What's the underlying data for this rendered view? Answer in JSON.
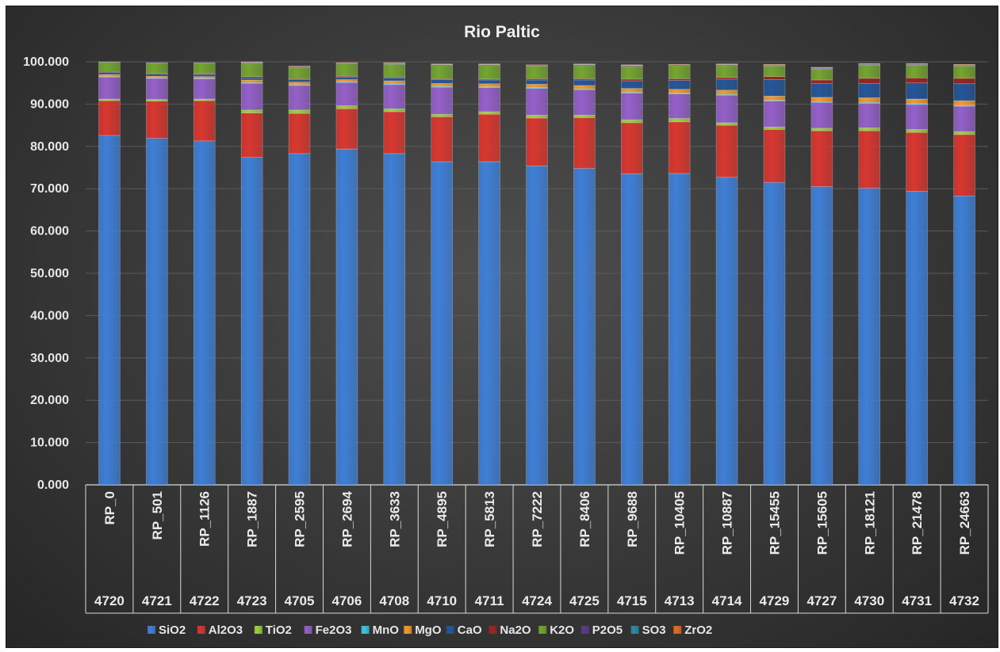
{
  "chart_data": {
    "type": "bar",
    "stacked": true,
    "title": "Rio Paltic",
    "ylim": [
      0,
      100
    ],
    "yticks": [
      "0.000",
      "10.000",
      "20.000",
      "30.000",
      "40.000",
      "50.000",
      "60.000",
      "70.000",
      "80.000",
      "90.000",
      "100.000"
    ],
    "grid": true,
    "legend_position": "bottom",
    "categories": [
      "RP_0",
      "RP_501",
      "RP_1126",
      "RP_1887",
      "RP_2595",
      "RP_2694",
      "RP_3633",
      "RP_4895",
      "RP_5813",
      "RP_7222",
      "RP_8406",
      "RP_9688",
      "RP_10405",
      "RP_10887",
      "RP_15455",
      "RP_15605",
      "RP_18121",
      "RP_21478",
      "RP_24663"
    ],
    "category_ids": [
      "4720",
      "4721",
      "4722",
      "4723",
      "4705",
      "4706",
      "4708",
      "4710",
      "4711",
      "4724",
      "4725",
      "4715",
      "4713",
      "4714",
      "4729",
      "4727",
      "4730",
      "4731",
      "4732"
    ],
    "series": [
      {
        "name": "SiO2",
        "color": "#3f7fd6",
        "values": [
          82.6,
          81.9,
          81.3,
          77.4,
          78.3,
          79.4,
          78.3,
          76.4,
          76.4,
          75.4,
          74.8,
          73.5,
          73.6,
          72.7,
          71.5,
          70.5,
          70.1,
          69.4,
          68.3
        ]
      },
      {
        "name": "Al2O3",
        "color": "#d8372f",
        "values": [
          8.2,
          8.8,
          9.5,
          10.5,
          9.5,
          9.5,
          9.9,
          10.6,
          11.2,
          11.3,
          12.0,
          12.1,
          12.2,
          12.3,
          12.5,
          13.2,
          13.6,
          13.9,
          14.5
        ]
      },
      {
        "name": "TiO2",
        "color": "#9bd140",
        "values": [
          0.4,
          0.4,
          0.4,
          0.7,
          0.8,
          0.7,
          0.7,
          0.6,
          0.6,
          0.7,
          0.6,
          0.7,
          0.8,
          0.6,
          0.6,
          0.6,
          0.7,
          0.7,
          0.7
        ]
      },
      {
        "name": "Fe2O3",
        "color": "#9461c9",
        "values": [
          5.2,
          5.0,
          4.8,
          6.3,
          5.8,
          5.5,
          5.7,
          6.4,
          5.7,
          6.3,
          6.0,
          6.3,
          5.8,
          6.5,
          6.1,
          6.1,
          5.8,
          5.9,
          6.0
        ]
      },
      {
        "name": "MnO",
        "color": "#3fc3e0",
        "values": [
          0.1,
          0.1,
          0.1,
          0.2,
          0.2,
          0.2,
          0.2,
          0.2,
          0.2,
          0.2,
          0.2,
          0.2,
          0.2,
          0.2,
          0.2,
          0.2,
          0.2,
          0.2,
          0.2
        ]
      },
      {
        "name": "MgO",
        "color": "#f29b2e",
        "values": [
          0.5,
          0.4,
          0.4,
          0.6,
          0.6,
          0.5,
          0.7,
          0.7,
          0.7,
          0.8,
          0.8,
          0.9,
          0.9,
          1.0,
          1.0,
          1.0,
          1.1,
          1.1,
          1.1
        ]
      },
      {
        "name": "CaO",
        "color": "#24569a",
        "values": [
          0.5,
          0.5,
          0.5,
          0.5,
          0.6,
          0.6,
          0.7,
          0.9,
          0.9,
          1.0,
          1.3,
          1.8,
          2.1,
          2.6,
          3.9,
          3.3,
          3.4,
          3.8,
          4.0
        ]
      },
      {
        "name": "Na2O",
        "color": "#9a2522",
        "values": [
          0.2,
          0.2,
          0.2,
          0.3,
          0.2,
          0.2,
          0.2,
          0.2,
          0.2,
          0.3,
          0.3,
          0.4,
          0.4,
          0.4,
          0.7,
          0.8,
          1.2,
          1.2,
          1.3
        ]
      },
      {
        "name": "K2O",
        "color": "#74a531",
        "values": [
          2.2,
          2.4,
          2.5,
          3.1,
          2.7,
          2.9,
          3.0,
          3.1,
          3.2,
          3.0,
          3.1,
          3.0,
          3.1,
          2.8,
          2.5,
          2.6,
          3.1,
          3.0,
          2.9
        ]
      },
      {
        "name": "P2O5",
        "color": "#5a3b86",
        "values": [
          0.1,
          0.1,
          0.1,
          0.2,
          0.2,
          0.2,
          0.2,
          0.2,
          0.2,
          0.2,
          0.2,
          0.2,
          0.2,
          0.2,
          0.2,
          0.2,
          0.2,
          0.2,
          0.2
        ]
      },
      {
        "name": "SO3",
        "color": "#2a8ca3",
        "values": [
          0.0,
          0.0,
          0.0,
          0.1,
          0.0,
          0.0,
          0.1,
          0.1,
          0.1,
          0.0,
          0.1,
          0.1,
          0.0,
          0.1,
          0.1,
          0.1,
          0.1,
          0.1,
          0.1
        ]
      },
      {
        "name": "ZrO2",
        "color": "#e66b1e",
        "values": [
          0.0,
          0.0,
          0.0,
          0.1,
          0.1,
          0.1,
          0.1,
          0.1,
          0.1,
          0.1,
          0.1,
          0.1,
          0.1,
          0.1,
          0.1,
          0.1,
          0.1,
          0.1,
          0.1
        ]
      }
    ]
  }
}
